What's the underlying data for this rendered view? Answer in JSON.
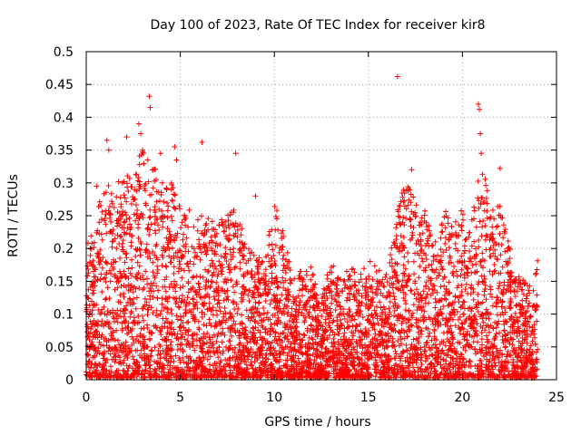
{
  "chart_data": {
    "type": "scatter",
    "title": "Day 100 of 2023, Rate Of TEC Index for receiver kir8",
    "xlabel": "GPS time / hours",
    "ylabel": "ROTI / TECUs",
    "xlim": [
      0,
      25
    ],
    "ylim": [
      0,
      0.5
    ],
    "x_ticks": [
      "0",
      "5",
      "10",
      "15",
      "20",
      "25"
    ],
    "y_ticks": [
      "0",
      "0.05",
      "0.1",
      "0.15",
      "0.2",
      "0.25",
      "0.3",
      "0.35",
      "0.4",
      "0.45",
      "0.5"
    ],
    "grid": true,
    "legend": "none",
    "marker": "plus",
    "color": "#ff0000",
    "series": [
      {
        "envelope_hours": [
          0,
          0.5,
          1,
          1.5,
          2,
          2.5,
          3,
          3.5,
          4,
          4.5,
          5,
          5.5,
          6,
          6.5,
          7,
          7.5,
          8,
          8.5,
          9,
          9.5,
          10,
          10.5,
          11,
          11.5,
          12,
          12.5,
          13,
          13.5,
          14,
          14.5,
          15,
          15.5,
          16,
          16.5,
          17,
          17.5,
          18,
          18.5,
          19,
          19.5,
          20,
          20.5,
          21,
          21.5,
          22,
          22.5,
          23,
          23.5,
          24
        ],
        "envelope_roti": [
          0.2,
          0.25,
          0.3,
          0.28,
          0.33,
          0.3,
          0.36,
          0.33,
          0.3,
          0.3,
          0.27,
          0.26,
          0.25,
          0.25,
          0.24,
          0.25,
          0.26,
          0.2,
          0.19,
          0.18,
          0.27,
          0.22,
          0.15,
          0.17,
          0.17,
          0.12,
          0.18,
          0.15,
          0.17,
          0.16,
          0.18,
          0.17,
          0.16,
          0.26,
          0.3,
          0.27,
          0.26,
          0.2,
          0.26,
          0.24,
          0.26,
          0.25,
          0.34,
          0.26,
          0.27,
          0.2,
          0.16,
          0.14,
          0.18
        ],
        "outliers": [
          {
            "x": 0.55,
            "y": 0.295
          },
          {
            "x": 1.1,
            "y": 0.365
          },
          {
            "x": 1.2,
            "y": 0.35
          },
          {
            "x": 2.15,
            "y": 0.37
          },
          {
            "x": 2.8,
            "y": 0.39
          },
          {
            "x": 2.9,
            "y": 0.375
          },
          {
            "x": 3.35,
            "y": 0.432
          },
          {
            "x": 3.4,
            "y": 0.415
          },
          {
            "x": 3.95,
            "y": 0.345
          },
          {
            "x": 4.7,
            "y": 0.355
          },
          {
            "x": 4.8,
            "y": 0.335
          },
          {
            "x": 6.15,
            "y": 0.362
          },
          {
            "x": 7.95,
            "y": 0.345
          },
          {
            "x": 9.0,
            "y": 0.28
          },
          {
            "x": 16.55,
            "y": 0.462
          },
          {
            "x": 17.3,
            "y": 0.32
          },
          {
            "x": 20.85,
            "y": 0.42
          },
          {
            "x": 20.9,
            "y": 0.412
          },
          {
            "x": 20.95,
            "y": 0.375
          },
          {
            "x": 21.0,
            "y": 0.345
          },
          {
            "x": 22.0,
            "y": 0.322
          }
        ]
      }
    ]
  }
}
